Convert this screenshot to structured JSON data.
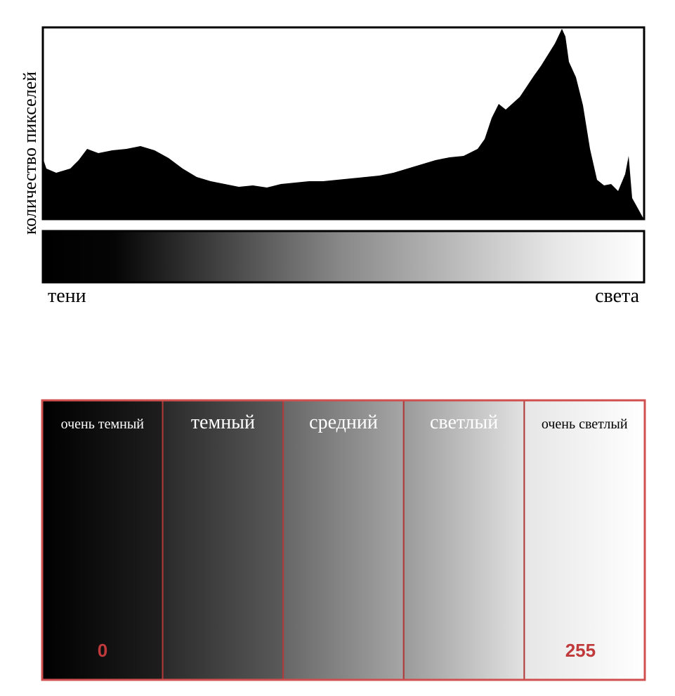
{
  "histogram": {
    "y_label": "количество пикселей",
    "left_label": "тени",
    "right_label": "света"
  },
  "zones": [
    {
      "label": "очень темный",
      "value": "0"
    },
    {
      "label": "темный"
    },
    {
      "label": "средний"
    },
    {
      "label": "светлый"
    },
    {
      "label": "очень светлый",
      "value": "255"
    }
  ]
}
